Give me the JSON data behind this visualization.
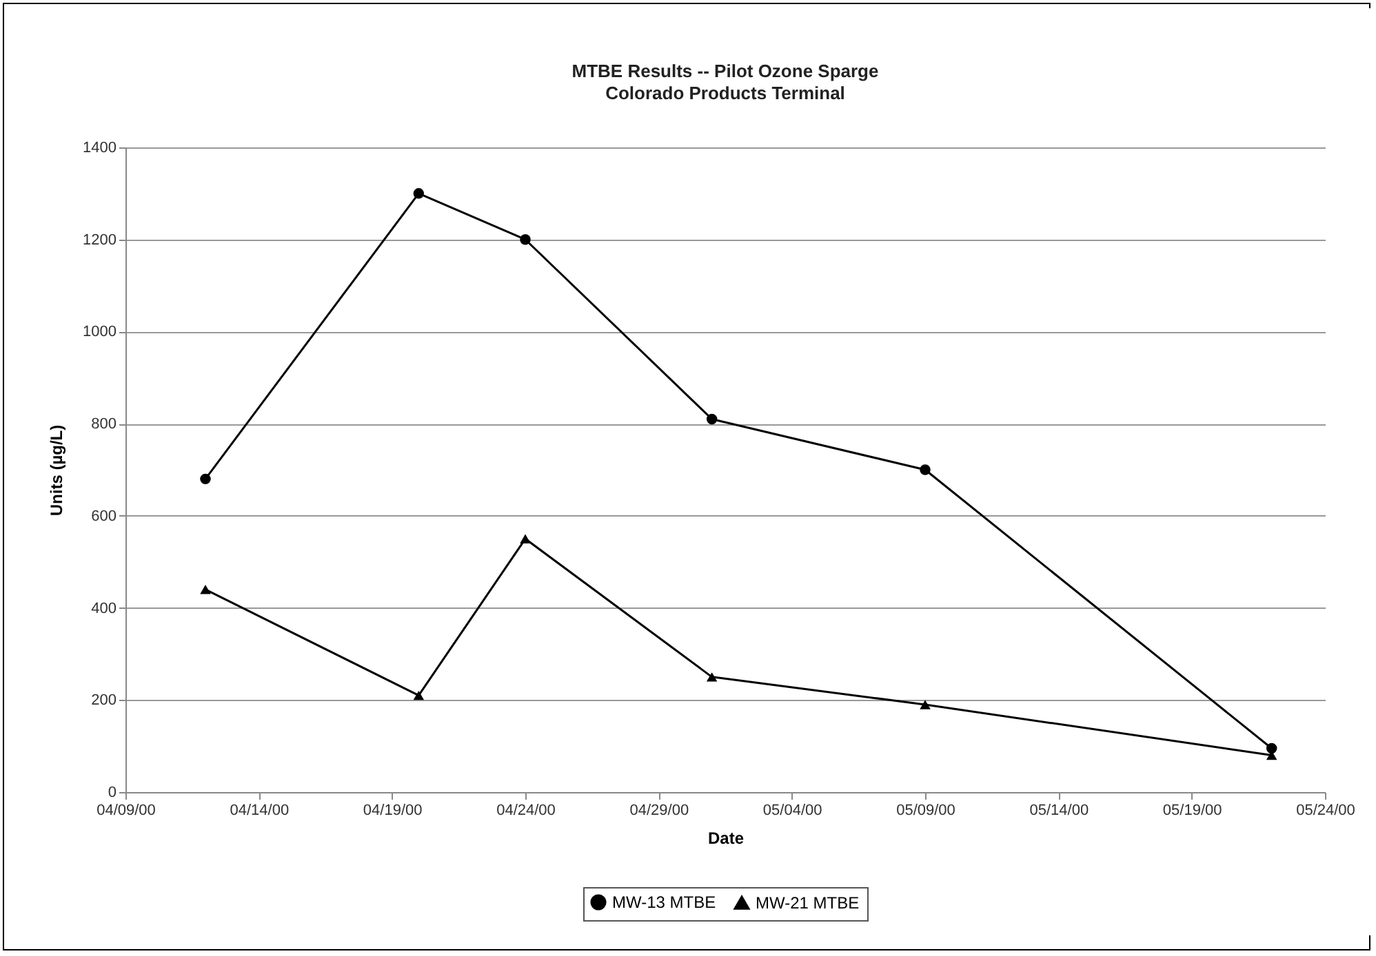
{
  "chart_data": {
    "type": "line",
    "title": "MTBE Results -- Pilot Ozone Sparge",
    "subtitle": "Colorado Products Terminal",
    "xlabel": "Date",
    "ylabel": "Units (µg/L)",
    "x": [
      "2000-04-12",
      "2000-04-20",
      "2000-04-24",
      "2000-05-01",
      "2000-05-09",
      "2000-05-22"
    ],
    "series": [
      {
        "name": "MW-13 MTBE",
        "color": "#000000",
        "marker": "circle",
        "values": [
          680,
          1300,
          1200,
          810,
          700,
          95
        ]
      },
      {
        "name": "MW-21 MTBE",
        "color": "#000000",
        "marker": "triangle",
        "values": [
          440,
          210,
          550,
          250,
          190,
          80
        ]
      }
    ],
    "xlim": [
      "2000-04-09",
      "2000-05-24"
    ],
    "xticks": [
      {
        "value": "2000-04-09",
        "label": "04/09/00"
      },
      {
        "value": "2000-04-14",
        "label": "04/14/00"
      },
      {
        "value": "2000-04-19",
        "label": "04/19/00"
      },
      {
        "value": "2000-04-24",
        "label": "04/24/00"
      },
      {
        "value": "2000-04-29",
        "label": "04/29/00"
      },
      {
        "value": "2000-05-04",
        "label": "05/04/00"
      },
      {
        "value": "2000-05-09",
        "label": "05/09/00"
      },
      {
        "value": "2000-05-14",
        "label": "05/14/00"
      },
      {
        "value": "2000-05-19",
        "label": "05/19/00"
      },
      {
        "value": "2000-05-24",
        "label": "05/24/00"
      }
    ],
    "ylim": [
      0,
      1400
    ],
    "yticks": [
      0,
      200,
      400,
      600,
      800,
      1000,
      1200,
      1400
    ],
    "grid": "y",
    "legend": "bottom",
    "line_style": "solid"
  }
}
